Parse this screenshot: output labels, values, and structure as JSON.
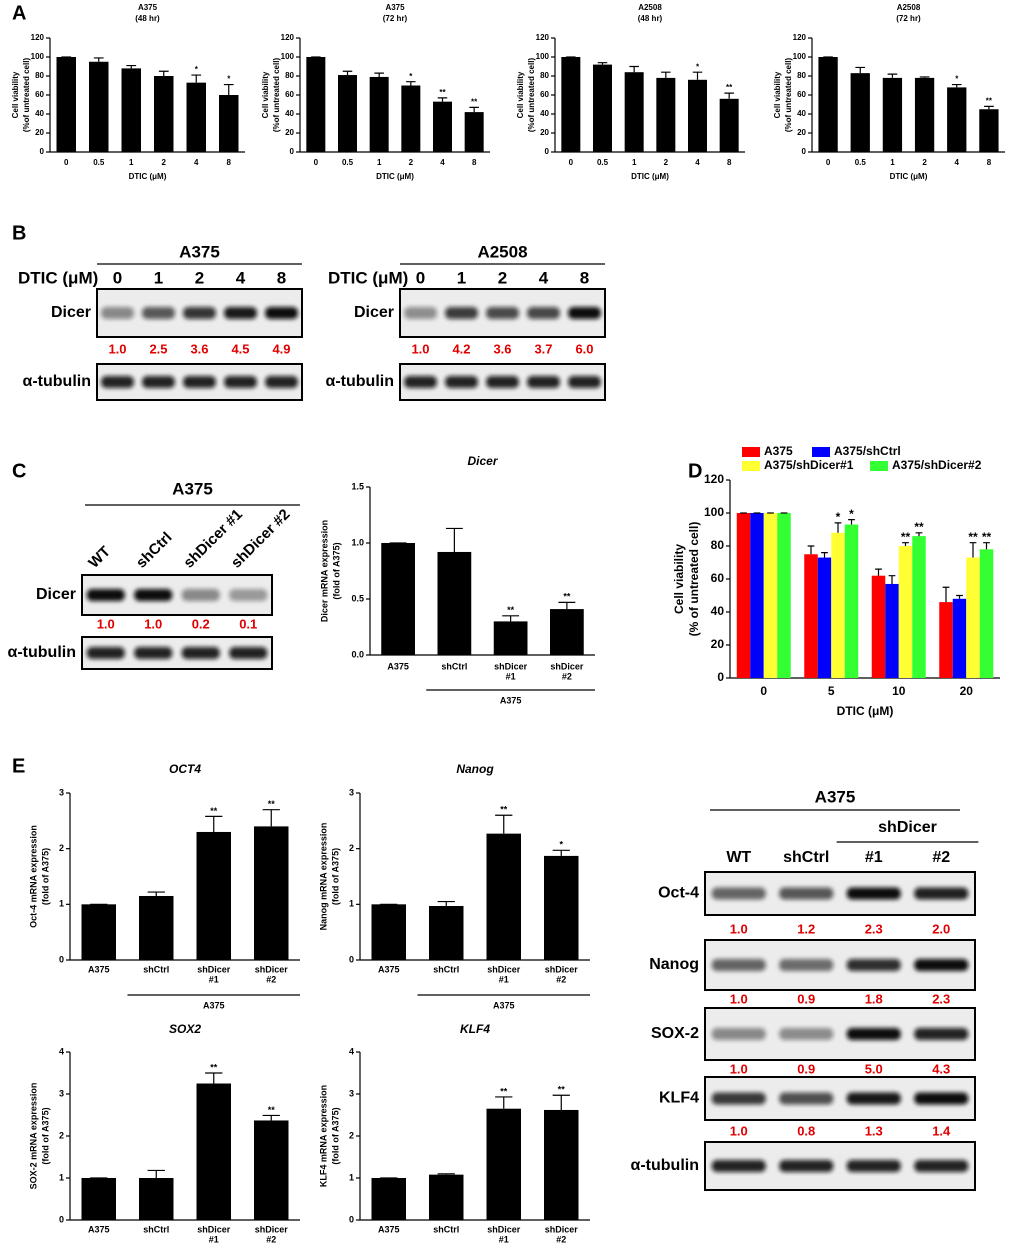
{
  "panel_labels": [
    "A",
    "B",
    "C",
    "D",
    "E"
  ],
  "chart_data": [
    {
      "type": "bar",
      "title": [
        "A375",
        "(48 hr)"
      ],
      "ylabel": [
        "Cell viability",
        "(%of untreated cell)"
      ],
      "xlabel": "DTIC (μM)",
      "categories": [
        "0",
        "0.5",
        "1",
        "2",
        "4",
        "8"
      ],
      "values": [
        100,
        95,
        88,
        80,
        73,
        60
      ],
      "errors": [
        0,
        4,
        3,
        5,
        8,
        11
      ],
      "sig": [
        null,
        null,
        null,
        null,
        "*",
        "*"
      ],
      "color": "#000000",
      "ylim": [
        0,
        120
      ],
      "yticks": [
        0,
        20,
        40,
        60,
        80,
        100,
        120
      ]
    },
    {
      "type": "bar",
      "title": [
        "A375",
        "(72 hr)"
      ],
      "ylabel": [
        "Cell viability",
        "(%of untreated cell)"
      ],
      "xlabel": "DTIC (μM)",
      "categories": [
        "0",
        "0.5",
        "1",
        "2",
        "4",
        "8"
      ],
      "values": [
        100,
        81,
        79,
        70,
        53,
        42
      ],
      "errors": [
        0,
        4,
        4,
        4,
        4,
        5
      ],
      "sig": [
        null,
        null,
        null,
        "*",
        "**",
        "**"
      ],
      "color": "#000000",
      "ylim": [
        0,
        120
      ],
      "yticks": [
        0,
        20,
        40,
        60,
        80,
        100,
        120
      ]
    },
    {
      "type": "bar",
      "title": [
        "A2508",
        "(48 hr)"
      ],
      "ylabel": [
        "Cell viability",
        "(%of untreated cell)"
      ],
      "xlabel": "DTIC (μM)",
      "categories": [
        "0",
        "0.5",
        "1",
        "2",
        "4",
        "8"
      ],
      "values": [
        100,
        92,
        84,
        78,
        76,
        56
      ],
      "errors": [
        0,
        2,
        6,
        6,
        8,
        6
      ],
      "sig": [
        null,
        null,
        null,
        null,
        "*",
        "**"
      ],
      "color": "#000000",
      "ylim": [
        0,
        120
      ],
      "yticks": [
        0,
        20,
        40,
        60,
        80,
        100,
        120
      ]
    },
    {
      "type": "bar",
      "title": [
        "A2508",
        "(72 hr)"
      ],
      "ylabel": [
        "Cell viability",
        "(%of untreated cell)"
      ],
      "xlabel": "DTIC (μM)",
      "categories": [
        "0",
        "0.5",
        "1",
        "2",
        "4",
        "8"
      ],
      "values": [
        100,
        83,
        78,
        78,
        68,
        45
      ],
      "errors": [
        0,
        6,
        4,
        1,
        3,
        3
      ],
      "sig": [
        null,
        null,
        null,
        null,
        "*",
        "**"
      ],
      "color": "#000000",
      "ylim": [
        0,
        120
      ],
      "yticks": [
        0,
        20,
        40,
        60,
        80,
        100,
        120
      ]
    },
    {
      "type": "bar",
      "title": [
        "Dicer"
      ],
      "ylabel": [
        "Dicer mRNA expression",
        "(fold of A375)"
      ],
      "group_label": "A375",
      "categories": [
        [
          "A375"
        ],
        [
          "shCtrl"
        ],
        [
          "shDicer",
          "#1"
        ],
        [
          "shDicer",
          "#2"
        ]
      ],
      "values": [
        1.0,
        0.92,
        0.3,
        0.41
      ],
      "errors": [
        0,
        0.21,
        0.05,
        0.06
      ],
      "sig": [
        null,
        null,
        "**",
        "**"
      ],
      "color": "#000000",
      "ylim": [
        0,
        1.5
      ],
      "yticks": [
        {
          "value": 0,
          "label": "0.0"
        },
        0.5,
        {
          "value": 1,
          "label": "1.0"
        },
        1.5
      ]
    },
    {
      "type": "bar",
      "ylabel": [
        "Cell viability",
        "(% of untreated cell)"
      ],
      "xlabel": "DTIC (μM)",
      "legend": "top",
      "categories": [
        "0",
        "5",
        "10",
        "20"
      ],
      "ylim": [
        0,
        120
      ],
      "yticks": [
        0,
        20,
        40,
        60,
        80,
        100,
        120
      ],
      "series": [
        {
          "name": "A375",
          "color": "#ff0000",
          "values": [
            100,
            75,
            62,
            46
          ],
          "errors": [
            0,
            5,
            4,
            9
          ]
        },
        {
          "name": "A375/shCtrl",
          "color": "#0000ff",
          "values": [
            100,
            73,
            57,
            48
          ],
          "errors": [
            0,
            3,
            5,
            2
          ]
        },
        {
          "name": "A375/shDicer#1",
          "color": "#ffff33",
          "values": [
            100,
            88,
            80,
            73
          ],
          "errors": [
            0,
            6,
            2,
            9
          ],
          "sig": [
            null,
            "*",
            "**",
            "**"
          ]
        },
        {
          "name": "A375/shDicer#2",
          "color": "#33ff33",
          "values": [
            100,
            93,
            86,
            78
          ],
          "errors": [
            0,
            3,
            2,
            4
          ],
          "sig": [
            null,
            "*",
            "**",
            "**"
          ]
        }
      ]
    },
    {
      "type": "bar",
      "title": [
        "OCT4"
      ],
      "ylabel": [
        "Oct-4 mRNA expression",
        "(fold of A375)"
      ],
      "group_label": "A375",
      "categories": [
        [
          "A375"
        ],
        [
          "shCtrl"
        ],
        [
          "shDicer",
          "#1"
        ],
        [
          "shDicer",
          "#2"
        ]
      ],
      "values": [
        1,
        1.15,
        2.3,
        2.4
      ],
      "errors": [
        0,
        0.07,
        0.28,
        0.3
      ],
      "sig": [
        null,
        null,
        "**",
        "**"
      ],
      "color": "#000000",
      "ylim": [
        0,
        3
      ],
      "yticks": [
        0,
        1,
        2,
        3
      ]
    },
    {
      "type": "bar",
      "title": [
        "Nanog"
      ],
      "ylabel": [
        "Nanog mRNA expression",
        "(fold of A375)"
      ],
      "group_label": "A375",
      "categories": [
        [
          "A375"
        ],
        [
          "shCtrl"
        ],
        [
          "shDicer",
          "#1"
        ],
        [
          "shDicer",
          "#2"
        ]
      ],
      "values": [
        1,
        0.97,
        2.27,
        1.87
      ],
      "errors": [
        0,
        0.08,
        0.33,
        0.1
      ],
      "sig": [
        null,
        null,
        "**",
        "*"
      ],
      "color": "#000000",
      "ylim": [
        0,
        3
      ],
      "yticks": [
        0,
        1,
        2,
        3
      ]
    },
    {
      "type": "bar",
      "title": [
        "SOX2"
      ],
      "ylabel": [
        "SOX-2 mRNA expression",
        "(fold of A375)"
      ],
      "categories": [
        [
          "A375"
        ],
        [
          "shCtrl"
        ],
        [
          "shDicer",
          "#1"
        ],
        [
          "shDicer",
          "#2"
        ]
      ],
      "values": [
        1,
        1,
        3.25,
        2.37
      ],
      "errors": [
        0,
        0.18,
        0.25,
        0.12
      ],
      "sig": [
        null,
        null,
        "**",
        "**"
      ],
      "color": "#000000",
      "ylim": [
        0,
        4
      ],
      "yticks": [
        0,
        1,
        2,
        3,
        4
      ]
    },
    {
      "type": "bar",
      "title": [
        "KLF4"
      ],
      "ylabel": [
        "KLF4 mRNA expression",
        "(fold of A375)"
      ],
      "categories": [
        [
          "A375"
        ],
        [
          "shCtrl"
        ],
        [
          "shDicer",
          "#1"
        ],
        [
          "shDicer",
          "#2"
        ]
      ],
      "values": [
        1,
        1.08,
        2.65,
        2.62
      ],
      "errors": [
        0,
        0.02,
        0.28,
        0.35
      ],
      "sig": [
        null,
        null,
        "**",
        "**"
      ],
      "color": "#000000",
      "ylim": [
        0,
        4
      ],
      "yticks": [
        0,
        1,
        2,
        3,
        4
      ]
    }
  ],
  "blots": [
    {
      "title": "A375",
      "treatment_label": "DTIC (μM)",
      "lanes": [
        "0",
        "1",
        "2",
        "4",
        "8"
      ],
      "rows": [
        {
          "name": "Dicer",
          "quant": [
            "1.0",
            "2.5",
            "3.6",
            "4.5",
            "4.9"
          ]
        },
        {
          "name": "α-tubulin"
        }
      ]
    },
    {
      "title": "A2508",
      "treatment_label": "DTIC (μM)",
      "lanes": [
        "0",
        "1",
        "2",
        "4",
        "8"
      ],
      "rows": [
        {
          "name": "Dicer",
          "quant": [
            "1.0",
            "4.2",
            "3.6",
            "3.7",
            "6.0"
          ]
        },
        {
          "name": "α-tubulin"
        }
      ]
    },
    {
      "title": "A375",
      "lanes": [
        "WT",
        "shCtrl",
        "shDicer #1",
        "shDicer #2"
      ],
      "rows": [
        {
          "name": "Dicer",
          "quant": [
            "1.0",
            "1.0",
            "0.2",
            "0.1"
          ]
        },
        {
          "name": "α-tubulin"
        }
      ]
    },
    {
      "title": "A375",
      "group_label": "shDicer",
      "lanes": [
        "WT",
        "shCtrl",
        "#1",
        "#2"
      ],
      "rows": [
        {
          "name": "Oct-4",
          "quant": [
            "1.0",
            "1.2",
            "2.3",
            "2.0"
          ]
        },
        {
          "name": "Nanog",
          "quant": [
            "1.0",
            "0.9",
            "1.8",
            "2.3"
          ]
        },
        {
          "name": "SOX-2",
          "quant": [
            "1.0",
            "0.9",
            "5.0",
            "4.3"
          ]
        },
        {
          "name": "KLF4",
          "quant": [
            "1.0",
            "0.8",
            "1.3",
            "1.4"
          ]
        },
        {
          "name": "α-tubulin"
        }
      ]
    }
  ]
}
